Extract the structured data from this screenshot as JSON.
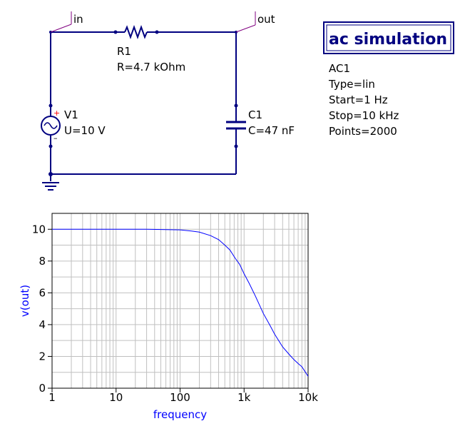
{
  "schematic": {
    "node_in": "in",
    "node_out": "out",
    "resistor": {
      "name": "R1",
      "value": "R=4.7 kOhm"
    },
    "source": {
      "name": "V1",
      "value": "U=10 V",
      "plus": "+",
      "minus": "–"
    },
    "capacitor": {
      "name": "C1",
      "value": "C=47 nF"
    },
    "simulation": {
      "title": "ac simulation",
      "name": "AC1",
      "type": "Type=lin",
      "start": "Start=1 Hz",
      "stop": "Stop=10 kHz",
      "points": "Points=2000"
    }
  },
  "chart_data": {
    "type": "line",
    "xlabel": "frequency",
    "ylabel": "v(out)",
    "x_scale": "log",
    "xlim": [
      1,
      10000
    ],
    "ylim": [
      0,
      11
    ],
    "x_ticks": [
      1,
      10,
      100,
      1000,
      10000
    ],
    "x_tick_labels": [
      "1",
      "10",
      "100",
      "1k",
      "10k"
    ],
    "y_ticks": [
      0,
      2,
      4,
      6,
      8,
      10
    ],
    "y_tick_labels": [
      "0",
      "2",
      "4",
      "6",
      "8",
      "10"
    ],
    "grid": true,
    "line_color": "#0000ff",
    "series": [
      {
        "x": [
          1,
          10,
          30,
          60,
          100,
          150,
          200,
          300,
          400,
          500,
          600,
          720,
          850,
          1000,
          1200,
          1500,
          2000,
          2500,
          3000,
          4000,
          5000,
          6000,
          7000,
          8000,
          10000
        ],
        "y": [
          10,
          10,
          10,
          9.98,
          9.96,
          9.89,
          9.82,
          9.6,
          9.35,
          9.0,
          8.7,
          8.2,
          7.8,
          7.2,
          6.6,
          5.8,
          4.7,
          4.0,
          3.4,
          2.6,
          2.15,
          1.8,
          1.55,
          1.35,
          0.75
        ]
      }
    ]
  }
}
